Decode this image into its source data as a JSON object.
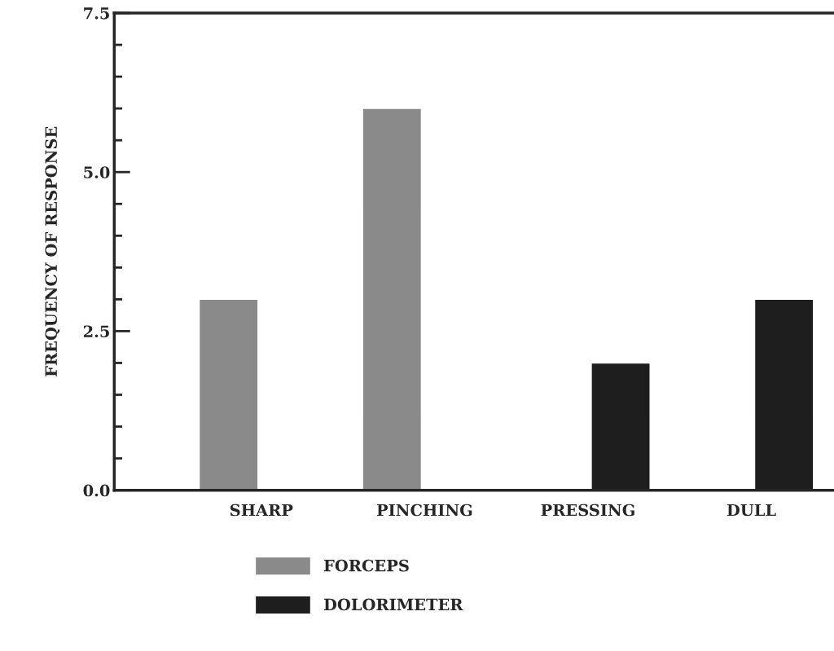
{
  "chart_data": {
    "type": "bar",
    "ylabel": "FREQUENCY OF RESPONSE",
    "categories": [
      "SHARP",
      "PINCHING",
      "PRESSING",
      "DULL"
    ],
    "series": [
      {
        "name": "FORCEPS",
        "color": "#8a8a8a",
        "values": [
          3,
          6,
          null,
          null
        ]
      },
      {
        "name": "DOLORIMETER",
        "color": "#1e1e1e",
        "values": [
          null,
          null,
          2,
          3
        ]
      }
    ],
    "ylim": [
      0,
      7.5
    ],
    "yticks": [
      {
        "value": 0,
        "label": "0.0"
      },
      {
        "value": 0.5,
        "label": null
      },
      {
        "value": 1,
        "label": null
      },
      {
        "value": 1.5,
        "label": null
      },
      {
        "value": 2,
        "label": null
      },
      {
        "value": 2.5,
        "label": "2.5"
      },
      {
        "value": 3,
        "label": null
      },
      {
        "value": 3.5,
        "label": null
      },
      {
        "value": 4,
        "label": null
      },
      {
        "value": 4.5,
        "label": null
      },
      {
        "value": 5,
        "label": "5.0"
      },
      {
        "value": 5.5,
        "label": null
      },
      {
        "value": 6,
        "label": null
      },
      {
        "value": 6.5,
        "label": null
      },
      {
        "value": 7,
        "label": null
      },
      {
        "value": 7.5,
        "label": "7.5"
      }
    ],
    "grid": false,
    "legend": "bottom"
  }
}
